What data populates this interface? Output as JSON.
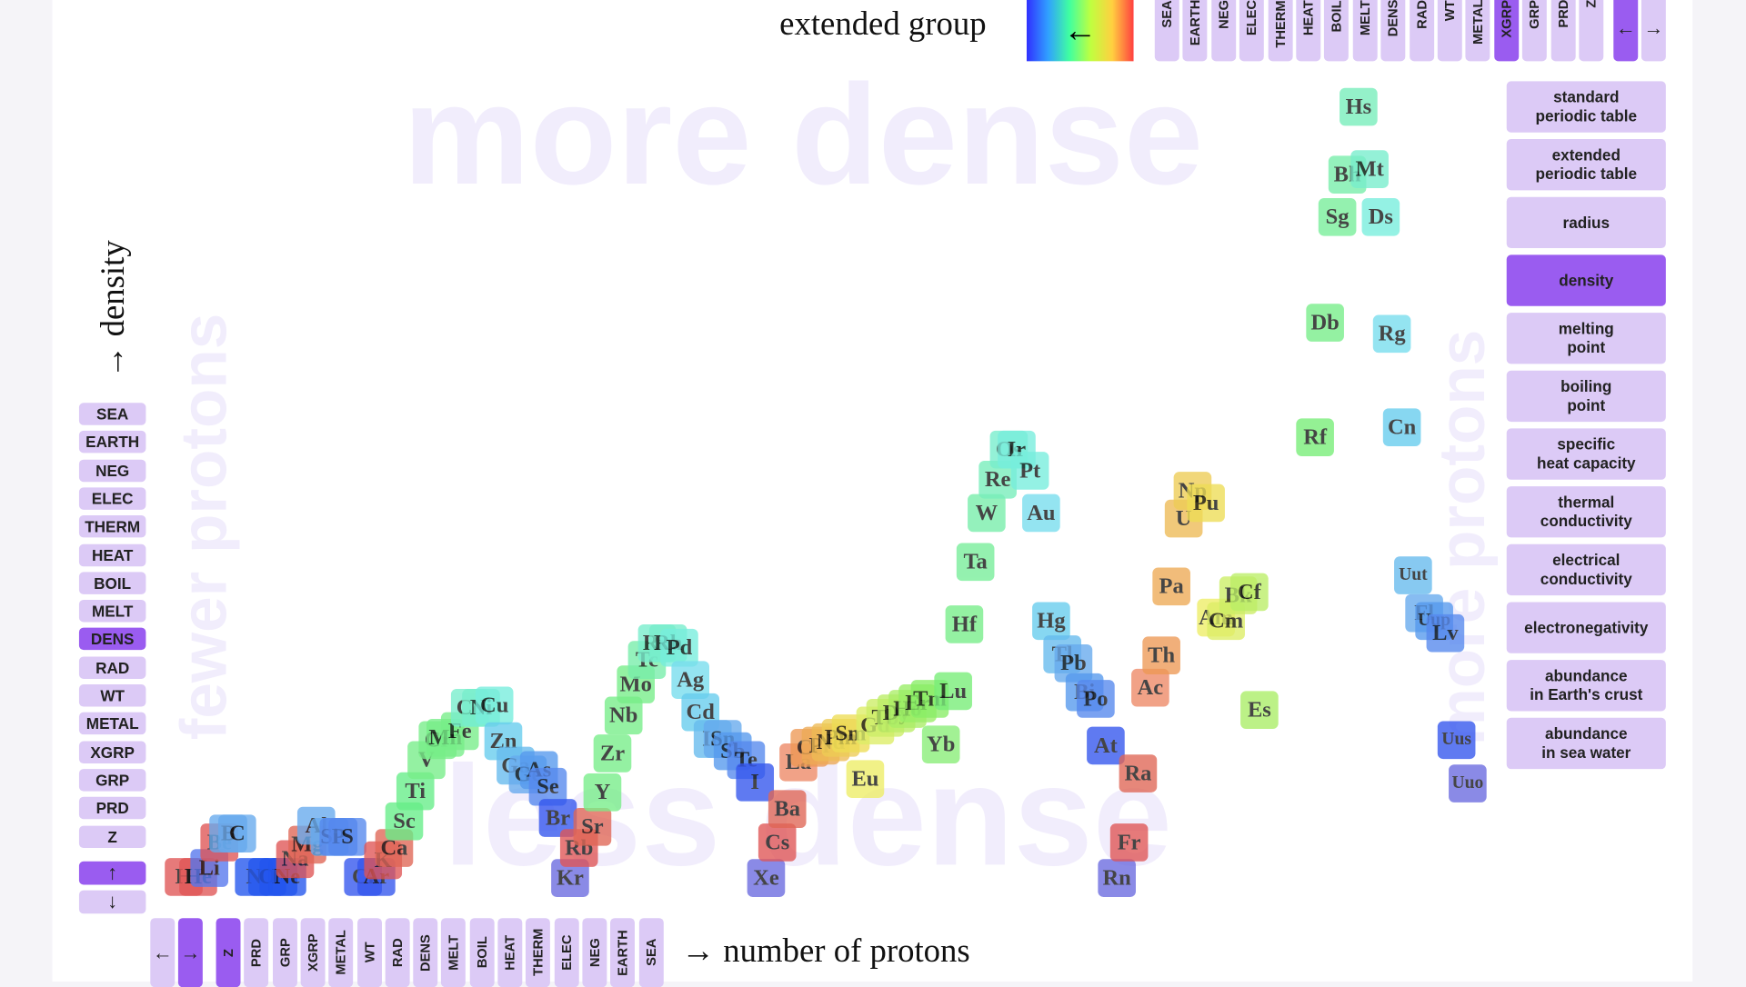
{
  "header": {
    "color_label": "extended group",
    "gradient_arrow": "←",
    "buttons": [
      "SEA",
      "EARTH",
      "NEG",
      "ELEC",
      "THERM",
      "HEAT",
      "BOIL",
      "MELT",
      "DENS",
      "RAD",
      "WT",
      "METAL",
      "XGRP",
      "GRP",
      "PRD",
      "Z"
    ],
    "active_button": 12,
    "nav": [
      "←",
      "→"
    ],
    "active_nav": 0
  },
  "y_axis": {
    "label": "→ density",
    "buttons": [
      "SEA",
      "EARTH",
      "NEG",
      "ELEC",
      "THERM",
      "HEAT",
      "BOIL",
      "MELT",
      "DENS",
      "RAD",
      "WT",
      "METAL",
      "XGRP",
      "GRP",
      "PRD",
      "Z"
    ],
    "active_button": 8,
    "nav": [
      "↑",
      "↓"
    ],
    "active_nav": 0
  },
  "x_axis": {
    "label": "→ number of protons",
    "nav": [
      "←",
      "→"
    ],
    "active_nav": 1,
    "buttons": [
      "Z",
      "PRD",
      "GRP",
      "XGRP",
      "METAL",
      "WT",
      "RAD",
      "DENS",
      "MELT",
      "BOIL",
      "HEAT",
      "THERM",
      "ELEC",
      "NEG",
      "EARTH",
      "SEA"
    ],
    "active_button": 0
  },
  "watermarks": {
    "top": "more dense",
    "bottom": "less dense",
    "left": "fewer protons",
    "right": "more protons"
  },
  "menu": {
    "items": [
      "standard\nperiodic table",
      "extended\nperiodic table",
      "radius",
      "density",
      "melting\npoint",
      "boiling\npoint",
      "specific\nheat capacity",
      "thermal\nconductivity",
      "electrical\nconductivity",
      "electronegativity",
      "abundance\nin Earth's crust",
      "abundance\nin sea water"
    ],
    "active_item": 3
  },
  "elements": [
    {
      "symbol": "H",
      "color": "#e05555"
    },
    {
      "symbol": "He",
      "color": "#e05555"
    },
    {
      "symbol": "Li",
      "color": "#5577ee"
    },
    {
      "symbol": "Be",
      "color": "#e05555"
    },
    {
      "symbol": "B",
      "color": "#66aaee"
    },
    {
      "symbol": "C",
      "color": "#66aaee"
    },
    {
      "symbol": "N",
      "color": "#2255ee"
    },
    {
      "symbol": "O",
      "color": "#2255ee"
    },
    {
      "symbol": "F",
      "color": "#2255ee"
    },
    {
      "symbol": "Ne",
      "color": "#2255ee"
    },
    {
      "symbol": "Na",
      "color": "#e05555"
    },
    {
      "symbol": "Mg",
      "color": "#e06655"
    },
    {
      "symbol": "Al",
      "color": "#66aaee"
    },
    {
      "symbol": "Si",
      "color": "#66aaee"
    },
    {
      "symbol": "P",
      "color": "#5588ee"
    },
    {
      "symbol": "S",
      "color": "#5588ee"
    },
    {
      "symbol": "Cl",
      "color": "#3355ee"
    },
    {
      "symbol": "Ar",
      "color": "#3355ee"
    },
    {
      "symbol": "K",
      "color": "#e05555"
    },
    {
      "symbol": "Ca",
      "color": "#e06655"
    },
    {
      "symbol": "Sc",
      "color": "#66ee88"
    },
    {
      "symbol": "Ti",
      "color": "#66ee88"
    },
    {
      "symbol": "V",
      "color": "#77ee88"
    },
    {
      "symbol": "Cr",
      "color": "#77ee88"
    },
    {
      "symbol": "Mn",
      "color": "#77ee88"
    },
    {
      "symbol": "Fe",
      "color": "#77ee88"
    },
    {
      "symbol": "Co",
      "color": "#77eecc"
    },
    {
      "symbol": "Ni",
      "color": "#77eecc"
    },
    {
      "symbol": "Cu",
      "color": "#77eedd"
    },
    {
      "symbol": "Zn",
      "color": "#66ccee"
    },
    {
      "symbol": "Ga",
      "color": "#66bbee"
    },
    {
      "symbol": "Ge",
      "color": "#66aaee"
    },
    {
      "symbol": "As",
      "color": "#5599ee"
    },
    {
      "symbol": "Se",
      "color": "#5588ee"
    },
    {
      "symbol": "Br",
      "color": "#3355ee"
    },
    {
      "symbol": "Kr",
      "color": "#6a6adf"
    },
    {
      "symbol": "Rb",
      "color": "#e05555"
    },
    {
      "symbol": "Sr",
      "color": "#e06655"
    },
    {
      "symbol": "Y",
      "color": "#77ee88"
    },
    {
      "symbol": "Zr",
      "color": "#77ee88"
    },
    {
      "symbol": "Nb",
      "color": "#77ee88"
    },
    {
      "symbol": "Mo",
      "color": "#77ee88"
    },
    {
      "symbol": "Tc",
      "color": "#77eeaa"
    },
    {
      "symbol": "Ru",
      "color": "#77eecc"
    },
    {
      "symbol": "Rh",
      "color": "#77eecc"
    },
    {
      "symbol": "Pd",
      "color": "#77eedd"
    },
    {
      "symbol": "Ag",
      "color": "#77ddee"
    },
    {
      "symbol": "Cd",
      "color": "#66ccee"
    },
    {
      "symbol": "In",
      "color": "#66bbee"
    },
    {
      "symbol": "Sn",
      "color": "#66aaee"
    },
    {
      "symbol": "Sb",
      "color": "#5599ee"
    },
    {
      "symbol": "Te",
      "color": "#5588ee"
    },
    {
      "symbol": "I",
      "color": "#3355ee"
    },
    {
      "symbol": "Xe",
      "color": "#6a6adf"
    },
    {
      "symbol": "Cs",
      "color": "#e05555"
    },
    {
      "symbol": "Ba",
      "color": "#e06655"
    },
    {
      "symbol": "La",
      "color": "#ee8866"
    },
    {
      "symbol": "Ce",
      "color": "#ee9955"
    },
    {
      "symbol": "Pr",
      "color": "#eeaa55"
    },
    {
      "symbol": "Nd",
      "color": "#eebb55"
    },
    {
      "symbol": "Pm",
      "color": "#eecc55"
    },
    {
      "symbol": "Sm",
      "color": "#eedd55"
    },
    {
      "symbol": "Eu",
      "color": "#eeee66"
    },
    {
      "symbol": "Gd",
      "color": "#ddee66"
    },
    {
      "symbol": "Tb",
      "color": "#ccee66"
    },
    {
      "symbol": "Dy",
      "color": "#bbee66"
    },
    {
      "symbol": "Ho",
      "color": "#aaee66"
    },
    {
      "symbol": "Er",
      "color": "#99ee66"
    },
    {
      "symbol": "Tm",
      "color": "#88ee66"
    },
    {
      "symbol": "Yb",
      "color": "#88ee77"
    },
    {
      "symbol": "Lu",
      "color": "#77ee77"
    },
    {
      "symbol": "Hf",
      "color": "#77ee88"
    },
    {
      "symbol": "Ta",
      "color": "#77ee99"
    },
    {
      "symbol": "W",
      "color": "#77eeaa"
    },
    {
      "symbol": "Re",
      "color": "#77eebb"
    },
    {
      "symbol": "Os",
      "color": "#77eecc"
    },
    {
      "symbol": "Ir",
      "color": "#77eedd"
    },
    {
      "symbol": "Pt",
      "color": "#77eedd"
    },
    {
      "symbol": "Au",
      "color": "#77ddee"
    },
    {
      "symbol": "Hg",
      "color": "#66ccee"
    },
    {
      "symbol": "Tl",
      "color": "#66bbee"
    },
    {
      "symbol": "Pb",
      "color": "#66aaee"
    },
    {
      "symbol": "Bi",
      "color": "#5599ee"
    },
    {
      "symbol": "Po",
      "color": "#5588ee"
    },
    {
      "symbol": "At",
      "color": "#3355ee"
    },
    {
      "symbol": "Rn",
      "color": "#6a6adf"
    },
    {
      "symbol": "Fr",
      "color": "#e05555"
    },
    {
      "symbol": "Ra",
      "color": "#e06655"
    },
    {
      "symbol": "Ac",
      "color": "#ee8866"
    },
    {
      "symbol": "Th",
      "color": "#ee9955"
    },
    {
      "symbol": "Pa",
      "color": "#eeaa55"
    },
    {
      "symbol": "U",
      "color": "#eebb55"
    },
    {
      "symbol": "Np",
      "color": "#eecc55"
    },
    {
      "symbol": "Pu",
      "color": "#eedd55"
    },
    {
      "symbol": "Am",
      "color": "#eeee66"
    },
    {
      "symbol": "Cm",
      "color": "#ddee66"
    },
    {
      "symbol": "Bk",
      "color": "#ccee66"
    },
    {
      "symbol": "Cf",
      "color": "#bbee66"
    },
    {
      "symbol": "Es",
      "color": "#aaee66"
    },
    {
      "symbol": "Rf",
      "color": "#77ee77"
    },
    {
      "symbol": "Db",
      "color": "#77ee88"
    },
    {
      "symbol": "Sg",
      "color": "#77ee99"
    },
    {
      "symbol": "Bh",
      "color": "#77eeaa"
    },
    {
      "symbol": "Hs",
      "color": "#77eebb"
    },
    {
      "symbol": "Mt",
      "color": "#77eecc"
    },
    {
      "symbol": "Ds",
      "color": "#77eedd"
    },
    {
      "symbol": "Rg",
      "color": "#77ddee"
    },
    {
      "symbol": "Cn",
      "color": "#66ccee"
    },
    {
      "symbol": "Uut",
      "color": "#66bbee"
    },
    {
      "symbol": "Fl",
      "color": "#66aaee"
    },
    {
      "symbol": "Uup",
      "color": "#5599ee"
    },
    {
      "symbol": "Lv",
      "color": "#5588ee"
    },
    {
      "symbol": "Uus",
      "color": "#3355ee"
    },
    {
      "symbol": "Uuo",
      "color": "#6a6adf"
    }
  ]
}
